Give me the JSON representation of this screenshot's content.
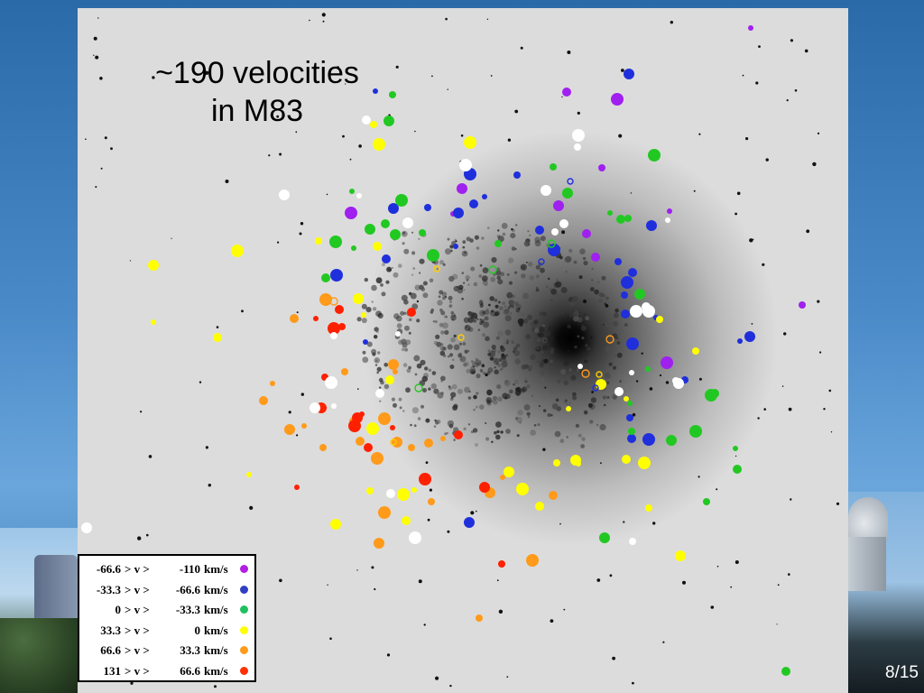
{
  "title": {
    "line1": "~190 velocities",
    "line2": "in M83"
  },
  "page_number": "8/15",
  "colors": {
    "purple": "#a020f0",
    "blue": "#1f2fdc",
    "green": "#22c822",
    "yellow": "#ffff00",
    "orange": "#ff9a1a",
    "red": "#ff2000",
    "white": "#ffffff"
  },
  "legend": {
    "rows": [
      {
        "a": "-66.6",
        "gt1": "> v >",
        "b": "-110",
        "unit": "km/s",
        "color": "#b020e0"
      },
      {
        "a": "-33.3",
        "gt1": "> v >",
        "b": "-66.6",
        "unit": "km/s",
        "color": "#3040c0"
      },
      {
        "a": "0",
        "gt1": "> v >",
        "b": "-33.3",
        "unit": "km/s",
        "color": "#20c060"
      },
      {
        "a": "33.3",
        "gt1": "> v >",
        "b": "0",
        "unit": "km/s",
        "color": "#ffff00"
      },
      {
        "a": "66.6",
        "gt1": "> v >",
        "b": "33.3",
        "unit": "km/s",
        "color": "#ff9a1a"
      },
      {
        "a": "131",
        "gt1": "> v >",
        "b": "66.6",
        "unit": "km/s",
        "color": "#ff3000"
      }
    ]
  },
  "chart_data": {
    "type": "scatter",
    "title": "~190 velocities in M83",
    "xlabel": "",
    "ylabel": "",
    "grid": false,
    "legend_placement": "bottom-left",
    "series": [
      {
        "name": "-66.6 > v > -110 km/s",
        "color": "#a020f0",
        "points": [
          [
            832,
            31
          ],
          [
            628,
            102
          ],
          [
            684,
            110
          ],
          [
            667,
            186
          ],
          [
            619,
            228
          ],
          [
            742,
            234
          ],
          [
            660,
            285
          ],
          [
            739,
            402
          ],
          [
            889,
            338
          ],
          [
            512,
            209
          ],
          [
            502,
            237
          ],
          [
            650,
            259
          ],
          [
            389,
            236
          ]
        ]
      },
      {
        "name": "-33.3 > v > -66.6 km/s",
        "color": "#1f2fdc",
        "points": [
          [
            697,
            82
          ],
          [
            416,
            101
          ],
          [
            525,
            226
          ],
          [
            521,
            193
          ],
          [
            573,
            194
          ],
          [
            436,
            231
          ],
          [
            505,
            273
          ],
          [
            701,
            302
          ],
          [
            695,
            313
          ],
          [
            692,
            327
          ],
          [
            722,
            250
          ],
          [
            727,
            352
          ],
          [
            693,
            348
          ],
          [
            701,
            381
          ],
          [
            759,
            421
          ],
          [
            831,
            373
          ],
          [
            820,
            378
          ],
          [
            700,
            486
          ],
          [
            719,
            487
          ],
          [
            698,
            463
          ],
          [
            520,
            579
          ],
          [
            405,
            379
          ],
          [
            428,
            287
          ],
          [
            373,
            305
          ],
          [
            474,
            230
          ],
          [
            508,
            236
          ],
          [
            537,
            218
          ],
          [
            598,
            255
          ],
          [
            614,
            277
          ],
          [
            685,
            290
          ]
        ]
      },
      {
        "name": "0 > v > -33.3 km/s",
        "color": "#22c822",
        "points": [
          [
            435,
            105
          ],
          [
            431,
            134
          ],
          [
            390,
            212
          ],
          [
            427,
            248
          ],
          [
            445,
            222
          ],
          [
            468,
            258
          ],
          [
            410,
            254
          ],
          [
            392,
            275
          ],
          [
            361,
            308
          ],
          [
            372,
            268
          ],
          [
            696,
            242
          ],
          [
            709,
            326
          ],
          [
            718,
            409
          ],
          [
            792,
            436
          ],
          [
            788,
            438
          ],
          [
            700,
            478
          ],
          [
            744,
            488
          ],
          [
            815,
            497
          ],
          [
            817,
            520
          ],
          [
            771,
            478
          ],
          [
            783,
            556
          ],
          [
            670,
            596
          ],
          [
            698,
            447
          ],
          [
            871,
            744
          ],
          [
            725,
            172
          ],
          [
            613,
            185
          ],
          [
            629,
            214
          ],
          [
            676,
            236
          ],
          [
            688,
            243
          ],
          [
            480,
            283
          ],
          [
            552,
            270
          ],
          [
            438,
            260
          ]
        ]
      },
      {
        "name": "33.3 > v > 0 km/s",
        "color": "#ffff00",
        "points": [
          [
            420,
            160
          ],
          [
            414,
            138
          ],
          [
            170,
            294
          ],
          [
            170,
            357
          ],
          [
            241,
            374
          ],
          [
            263,
            278
          ],
          [
            353,
            267
          ],
          [
            397,
            331
          ],
          [
            403,
            349
          ],
          [
            418,
            273
          ],
          [
            521,
            158
          ],
          [
            771,
            389
          ],
          [
            638,
            510
          ],
          [
            641,
            514
          ],
          [
            598,
            561
          ],
          [
            579,
            542
          ],
          [
            617,
            513
          ],
          [
            564,
            523
          ],
          [
            630,
            453
          ],
          [
            694,
            509
          ],
          [
            714,
            513
          ],
          [
            719,
            563
          ],
          [
            754,
            616
          ],
          [
            459,
            543
          ],
          [
            450,
            577
          ],
          [
            447,
            548
          ],
          [
            410,
            544
          ],
          [
            372,
            581
          ],
          [
            276,
            526
          ],
          [
            432,
            421
          ],
          [
            413,
            475
          ],
          [
            731,
            354
          ],
          [
            666,
            426
          ],
          [
            694,
            442
          ]
        ]
      },
      {
        "name": "66.6 > v > 33.3 km/s",
        "color": "#ff9a1a",
        "points": [
          [
            326,
            353
          ],
          [
            361,
            332
          ],
          [
            382,
            412
          ],
          [
            436,
            404
          ],
          [
            438,
            412
          ],
          [
            392,
            467
          ],
          [
            418,
            508
          ],
          [
            358,
            496
          ],
          [
            321,
            476
          ],
          [
            302,
            425
          ],
          [
            292,
            444
          ],
          [
            426,
            464
          ],
          [
            456,
            496
          ],
          [
            440,
            490
          ],
          [
            491,
            486
          ],
          [
            475,
            491
          ],
          [
            426,
            568
          ],
          [
            478,
            556
          ],
          [
            543,
            546
          ],
          [
            557,
            529
          ],
          [
            613,
            549
          ],
          [
            590,
            621
          ],
          [
            531,
            685
          ],
          [
            420,
            602
          ],
          [
            337,
            472
          ],
          [
            399,
            489
          ]
        ]
      },
      {
        "name": "131 > v > 66.6 km/s",
        "color": "#ff2000",
        "points": [
          [
            350,
            353
          ],
          [
            376,
            343
          ],
          [
            370,
            364
          ],
          [
            379,
            362
          ],
          [
            396,
            463
          ],
          [
            401,
            459
          ],
          [
            408,
            496
          ],
          [
            393,
            472
          ],
          [
            360,
            418
          ],
          [
            356,
            452
          ],
          [
            435,
            474
          ],
          [
            508,
            482
          ],
          [
            471,
            531
          ],
          [
            556,
            625
          ],
          [
            537,
            540
          ],
          [
            329,
            540
          ],
          [
            456,
            346
          ]
        ]
      },
      {
        "name": "",
        "color": "#ffffff",
        "points": [
          [
            315,
            216
          ],
          [
            398,
            217
          ],
          [
            406,
            133
          ],
          [
            641,
            150
          ],
          [
            640,
            163
          ],
          [
            605,
            211
          ],
          [
            740,
            244
          ],
          [
            716,
            340
          ],
          [
            719,
            345
          ],
          [
            749,
            422
          ],
          [
            752,
            425
          ],
          [
            700,
            413
          ],
          [
            686,
            434
          ],
          [
            705,
            345
          ],
          [
            615,
            257
          ],
          [
            452,
            247
          ],
          [
            441,
            370
          ],
          [
            421,
            436
          ],
          [
            367,
            424
          ],
          [
            370,
            372
          ],
          [
            349,
            452
          ],
          [
            370,
            450
          ],
          [
            433,
            547
          ],
          [
            460,
            596
          ],
          [
            701,
            600
          ],
          [
            96,
            585
          ],
          [
            643,
            406
          ],
          [
            625,
            248
          ],
          [
            516,
            183
          ]
        ]
      }
    ],
    "open_markers": [
      [
        511,
        374
      ],
      [
        464,
        430
      ],
      [
        660,
        430
      ],
      [
        649,
        414
      ],
      [
        484,
        298
      ],
      [
        546,
        299
      ],
      [
        632,
        201
      ],
      [
        676,
        376
      ],
      [
        664,
        415
      ],
      [
        611,
        270
      ],
      [
        600,
        290
      ],
      [
        370,
        334
      ],
      [
        436,
        490
      ]
    ]
  }
}
